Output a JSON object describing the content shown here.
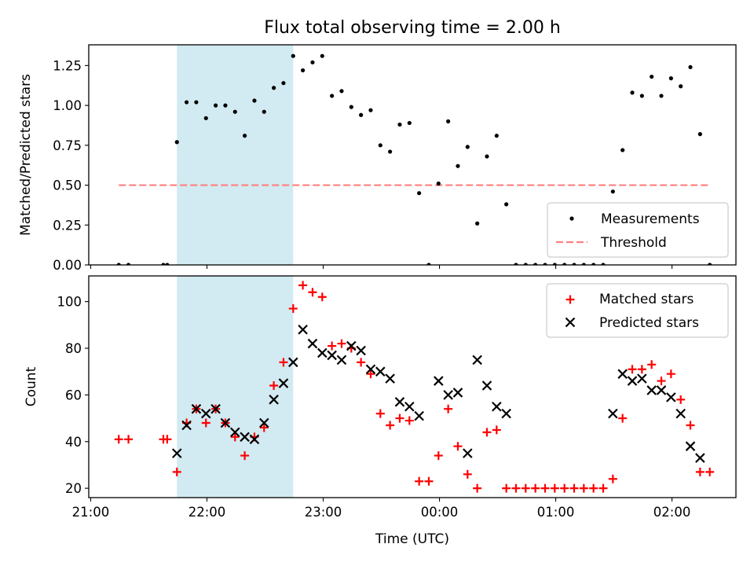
{
  "title": "Flux total observing time = 2.00 h",
  "xlabel": "Time (UTC)",
  "x_ticks": [
    {
      "t": 1260,
      "label": "21:00"
    },
    {
      "t": 1320,
      "label": "22:00"
    },
    {
      "t": 1380,
      "label": "23:00"
    },
    {
      "t": 1440,
      "label": "00:00"
    },
    {
      "t": 1500,
      "label": "01:00"
    },
    {
      "t": 1560,
      "label": "02:00"
    }
  ],
  "colors": {
    "shade": "#add8e6",
    "measurement": "#000000",
    "threshold": "#ff7f7f",
    "matched": "#ff0000",
    "predicted": "#000000"
  },
  "chart_data": [
    {
      "type": "scatter",
      "name": "ratio",
      "ylabel": "Matched/Predicted stars",
      "ylim": [
        0,
        1.38
      ],
      "xlim": [
        1259,
        1593
      ],
      "y_ticks": [
        "0.00",
        "0.25",
        "0.50",
        "0.75",
        "1.00",
        "1.25"
      ],
      "shaded_region": [
        1304.5,
        1364.5
      ],
      "threshold": {
        "value": 0.5,
        "x_range": [
          1274.5,
          1578.5
        ]
      },
      "legend": {
        "position": "lower right",
        "entries": [
          "Measurements",
          "Threshold"
        ]
      },
      "series": [
        {
          "name": "Measurements",
          "x": [
            1274.5,
            1279.5,
            1297.5,
            1299.5,
            1304.5,
            1309.5,
            1314.5,
            1319.5,
            1324.5,
            1329.5,
            1334.5,
            1339.5,
            1344.5,
            1349.5,
            1354.5,
            1359.5,
            1364.5,
            1369.5,
            1374.5,
            1379.5,
            1384.5,
            1389.5,
            1394.5,
            1399.5,
            1404.5,
            1409.5,
            1414.5,
            1419.5,
            1424.5,
            1429.5,
            1434.5,
            1439.5,
            1444.5,
            1449.5,
            1454.5,
            1459.5,
            1464.5,
            1469.5,
            1474.5,
            1479.5,
            1484.5,
            1489.5,
            1494.5,
            1499.5,
            1504.5,
            1509.5,
            1514.5,
            1519.5,
            1524.5,
            1529.5,
            1534.5,
            1539.5,
            1544.5,
            1549.5,
            1554.5,
            1559.5,
            1564.5,
            1569.5,
            1574.5,
            1579.5
          ],
          "y": [
            0,
            0,
            0,
            0,
            0.77,
            1.02,
            1.02,
            0.92,
            1.0,
            1.0,
            0.96,
            0.81,
            1.03,
            0.96,
            1.11,
            1.14,
            1.31,
            1.22,
            1.27,
            1.31,
            1.06,
            1.09,
            0.99,
            0.94,
            0.97,
            0.75,
            0.71,
            0.88,
            0.89,
            0.45,
            0,
            0.51,
            0.9,
            0.62,
            0.74,
            0.26,
            0.68,
            0.81,
            0.38,
            0,
            0,
            0,
            0,
            0,
            0,
            0,
            0,
            0,
            0,
            0.46,
            0.72,
            1.08,
            1.06,
            1.18,
            1.06,
            1.17,
            1.12,
            1.24,
            0.82,
            0
          ]
        }
      ]
    },
    {
      "type": "scatter",
      "name": "counts",
      "ylabel": "Count",
      "ylim": [
        16,
        111
      ],
      "xlim": [
        1259,
        1593
      ],
      "y_ticks": [
        "20",
        "40",
        "60",
        "80",
        "100"
      ],
      "shaded_region": [
        1304.5,
        1364.5
      ],
      "legend": {
        "position": "upper right",
        "entries": [
          "Matched stars",
          "Predicted stars"
        ]
      },
      "series": [
        {
          "name": "Matched stars",
          "marker": "plus",
          "x": [
            1274.5,
            1279.5,
            1297.5,
            1299.5,
            1304.5,
            1309.5,
            1314.5,
            1319.5,
            1324.5,
            1329.5,
            1334.5,
            1339.5,
            1344.5,
            1349.5,
            1354.5,
            1359.5,
            1364.5,
            1369.5,
            1374.5,
            1379.5,
            1384.5,
            1389.5,
            1394.5,
            1399.5,
            1404.5,
            1409.5,
            1414.5,
            1419.5,
            1424.5,
            1429.5,
            1434.5,
            1439.5,
            1444.5,
            1449.5,
            1454.5,
            1459.5,
            1464.5,
            1469.5,
            1474.5,
            1479.5,
            1484.5,
            1489.5,
            1494.5,
            1499.5,
            1504.5,
            1509.5,
            1514.5,
            1519.5,
            1524.5,
            1529.5,
            1534.5,
            1539.5,
            1544.5,
            1549.5,
            1554.5,
            1559.5,
            1564.5,
            1569.5,
            1574.5,
            1579.5
          ],
          "y": [
            41,
            41,
            41,
            41,
            27,
            48,
            54,
            48,
            54,
            48,
            42,
            34,
            42,
            46,
            64,
            74,
            97,
            107,
            104,
            102,
            81,
            82,
            80,
            74,
            69,
            52,
            47,
            50,
            49,
            23,
            23,
            34,
            54,
            38,
            26,
            20,
            44,
            45,
            20,
            20,
            20,
            20,
            20,
            20,
            20,
            20,
            20,
            20,
            20,
            24,
            50,
            71,
            71,
            73,
            66,
            69,
            58,
            47,
            27,
            27
          ]
        },
        {
          "name": "Predicted stars",
          "marker": "x",
          "x": [
            1304.5,
            1309.5,
            1314.5,
            1319.5,
            1324.5,
            1329.5,
            1334.5,
            1339.5,
            1344.5,
            1349.5,
            1354.5,
            1359.5,
            1364.5,
            1369.5,
            1374.5,
            1379.5,
            1384.5,
            1389.5,
            1394.5,
            1399.5,
            1404.5,
            1409.5,
            1414.5,
            1419.5,
            1424.5,
            1429.5,
            1439.5,
            1444.5,
            1449.5,
            1454.5,
            1459.5,
            1464.5,
            1469.5,
            1474.5,
            1529.5,
            1534.5,
            1539.5,
            1544.5,
            1549.5,
            1554.5,
            1559.5,
            1564.5,
            1569.5,
            1574.5
          ],
          "y": [
            35,
            47,
            54,
            52,
            54,
            48,
            44,
            42,
            41,
            48,
            58,
            65,
            74,
            88,
            82,
            78,
            77,
            75,
            81,
            79,
            71,
            70,
            67,
            57,
            55,
            51,
            66,
            60,
            61,
            35,
            75,
            64,
            55,
            52,
            52,
            69,
            66,
            67,
            62,
            62,
            59,
            52,
            38,
            33
          ]
        }
      ]
    }
  ]
}
